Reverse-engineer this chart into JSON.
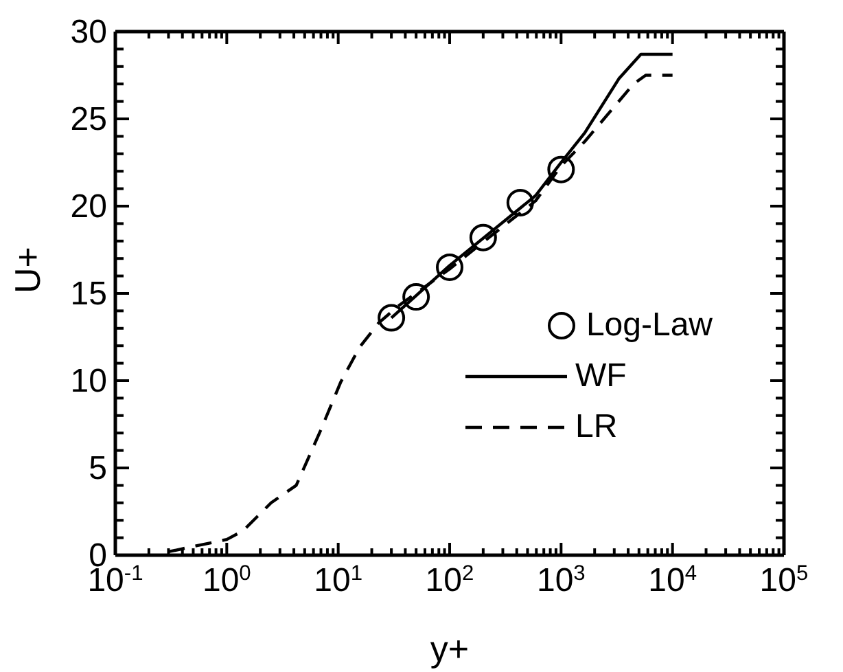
{
  "chart_data": {
    "type": "line",
    "xlabel": "y+",
    "ylabel": "U+",
    "log": "x",
    "xlim": [
      0.1,
      100000
    ],
    "ylim": [
      0,
      30
    ],
    "xticks": [
      {
        "value": 0.1,
        "label": "10$^{-1}$"
      },
      {
        "value": 0.2,
        "label": null
      },
      {
        "value": 0.3,
        "label": null
      },
      {
        "value": 0.4,
        "label": null
      },
      {
        "value": 0.5,
        "label": null
      },
      {
        "value": 0.6,
        "label": null
      },
      {
        "value": 0.7,
        "label": null
      },
      {
        "value": 0.8,
        "label": null
      },
      {
        "value": 0.9,
        "label": null
      },
      {
        "value": 1,
        "label": "10$^{0}$"
      },
      {
        "value": 2,
        "label": null
      },
      {
        "value": 3,
        "label": null
      },
      {
        "value": 4,
        "label": null
      },
      {
        "value": 5,
        "label": null
      },
      {
        "value": 6,
        "label": null
      },
      {
        "value": 7,
        "label": null
      },
      {
        "value": 8,
        "label": null
      },
      {
        "value": 9,
        "label": null
      },
      {
        "value": 10,
        "label": "10$^{1}$"
      },
      {
        "value": 20,
        "label": null
      },
      {
        "value": 30,
        "label": null
      },
      {
        "value": 40,
        "label": null
      },
      {
        "value": 50,
        "label": null
      },
      {
        "value": 60,
        "label": null
      },
      {
        "value": 70,
        "label": null
      },
      {
        "value": 80,
        "label": null
      },
      {
        "value": 90,
        "label": null
      },
      {
        "value": 100,
        "label": "10$^{2}$"
      },
      {
        "value": 200,
        "label": null
      },
      {
        "value": 300,
        "label": null
      },
      {
        "value": 400,
        "label": null
      },
      {
        "value": 500,
        "label": null
      },
      {
        "value": 600,
        "label": null
      },
      {
        "value": 700,
        "label": null
      },
      {
        "value": 800,
        "label": null
      },
      {
        "value": 900,
        "label": null
      },
      {
        "value": 1000,
        "label": "10$^{3}$"
      },
      {
        "value": 2000,
        "label": null
      },
      {
        "value": 3000,
        "label": null
      },
      {
        "value": 4000,
        "label": null
      },
      {
        "value": 5000,
        "label": null
      },
      {
        "value": 6000,
        "label": null
      },
      {
        "value": 7000,
        "label": null
      },
      {
        "value": 8000,
        "label": null
      },
      {
        "value": 9000,
        "label": null
      },
      {
        "value": 10000,
        "label": "10$^{4}$"
      },
      {
        "value": 20000,
        "label": null
      },
      {
        "value": 30000,
        "label": null
      },
      {
        "value": 40000,
        "label": null
      },
      {
        "value": 50000,
        "label": null
      },
      {
        "value": 60000,
        "label": null
      },
      {
        "value": 70000,
        "label": null
      },
      {
        "value": 80000,
        "label": null
      },
      {
        "value": 90000,
        "label": null
      },
      {
        "value": 100000,
        "label": "10$^{5}$"
      }
    ],
    "yticks": [
      0,
      {
        "value": 1,
        "label": null
      },
      {
        "value": 2,
        "label": null
      },
      {
        "value": 3,
        "label": null
      },
      {
        "value": 4,
        "label": null
      },
      5,
      {
        "value": 6,
        "label": null
      },
      {
        "value": 7,
        "label": null
      },
      {
        "value": 8,
        "label": null
      },
      {
        "value": 9,
        "label": null
      },
      10,
      {
        "value": 11,
        "label": null
      },
      {
        "value": 12,
        "label": null
      },
      {
        "value": 13,
        "label": null
      },
      {
        "value": 14,
        "label": null
      },
      15,
      {
        "value": 16,
        "label": null
      },
      {
        "value": 17,
        "label": null
      },
      {
        "value": 18,
        "label": null
      },
      {
        "value": 19,
        "label": null
      },
      20,
      {
        "value": 21,
        "label": null
      },
      {
        "value": 22,
        "label": null
      },
      {
        "value": 23,
        "label": null
      },
      {
        "value": 24,
        "label": null
      },
      25,
      {
        "value": 26,
        "label": null
      },
      {
        "value": 27,
        "label": null
      },
      {
        "value": 28,
        "label": null
      },
      {
        "value": 29,
        "label": null
      },
      30
    ],
    "legend": "right",
    "series": [
      {
        "name": "Log-Law",
        "type": "scatter",
        "marker": "circle",
        "color": "#000000",
        "x": [
          30,
          50,
          100,
          200,
          430,
          1000
        ],
        "values": [
          13.6,
          14.8,
          16.5,
          18.2,
          20.2,
          22.1
        ]
      },
      {
        "name": "WF",
        "type": "line",
        "line_style": "solid",
        "color": "#000000",
        "x": [
          30,
          100,
          590,
          1000,
          1630,
          3300,
          5200,
          10000
        ],
        "values": [
          13.6,
          16.6,
          20.6,
          22.5,
          24.2,
          27.3,
          28.7,
          28.7
        ]
      },
      {
        "name": "LR",
        "type": "line",
        "line_style": "dashed",
        "color": "#000000",
        "x": [
          0.3,
          1,
          1.4,
          2.5,
          4.2,
          6.9,
          10.5,
          15.5,
          23,
          35,
          100,
          215,
          590,
          1000,
          1630,
          4470,
          5750,
          10000
        ],
        "values": [
          0.2,
          0.9,
          1.4,
          3,
          4,
          7.1,
          9.9,
          11.9,
          13.3,
          14.3,
          16.4,
          18.1,
          20.3,
          22.3,
          23.7,
          27,
          27.5,
          27.5
        ]
      }
    ]
  }
}
